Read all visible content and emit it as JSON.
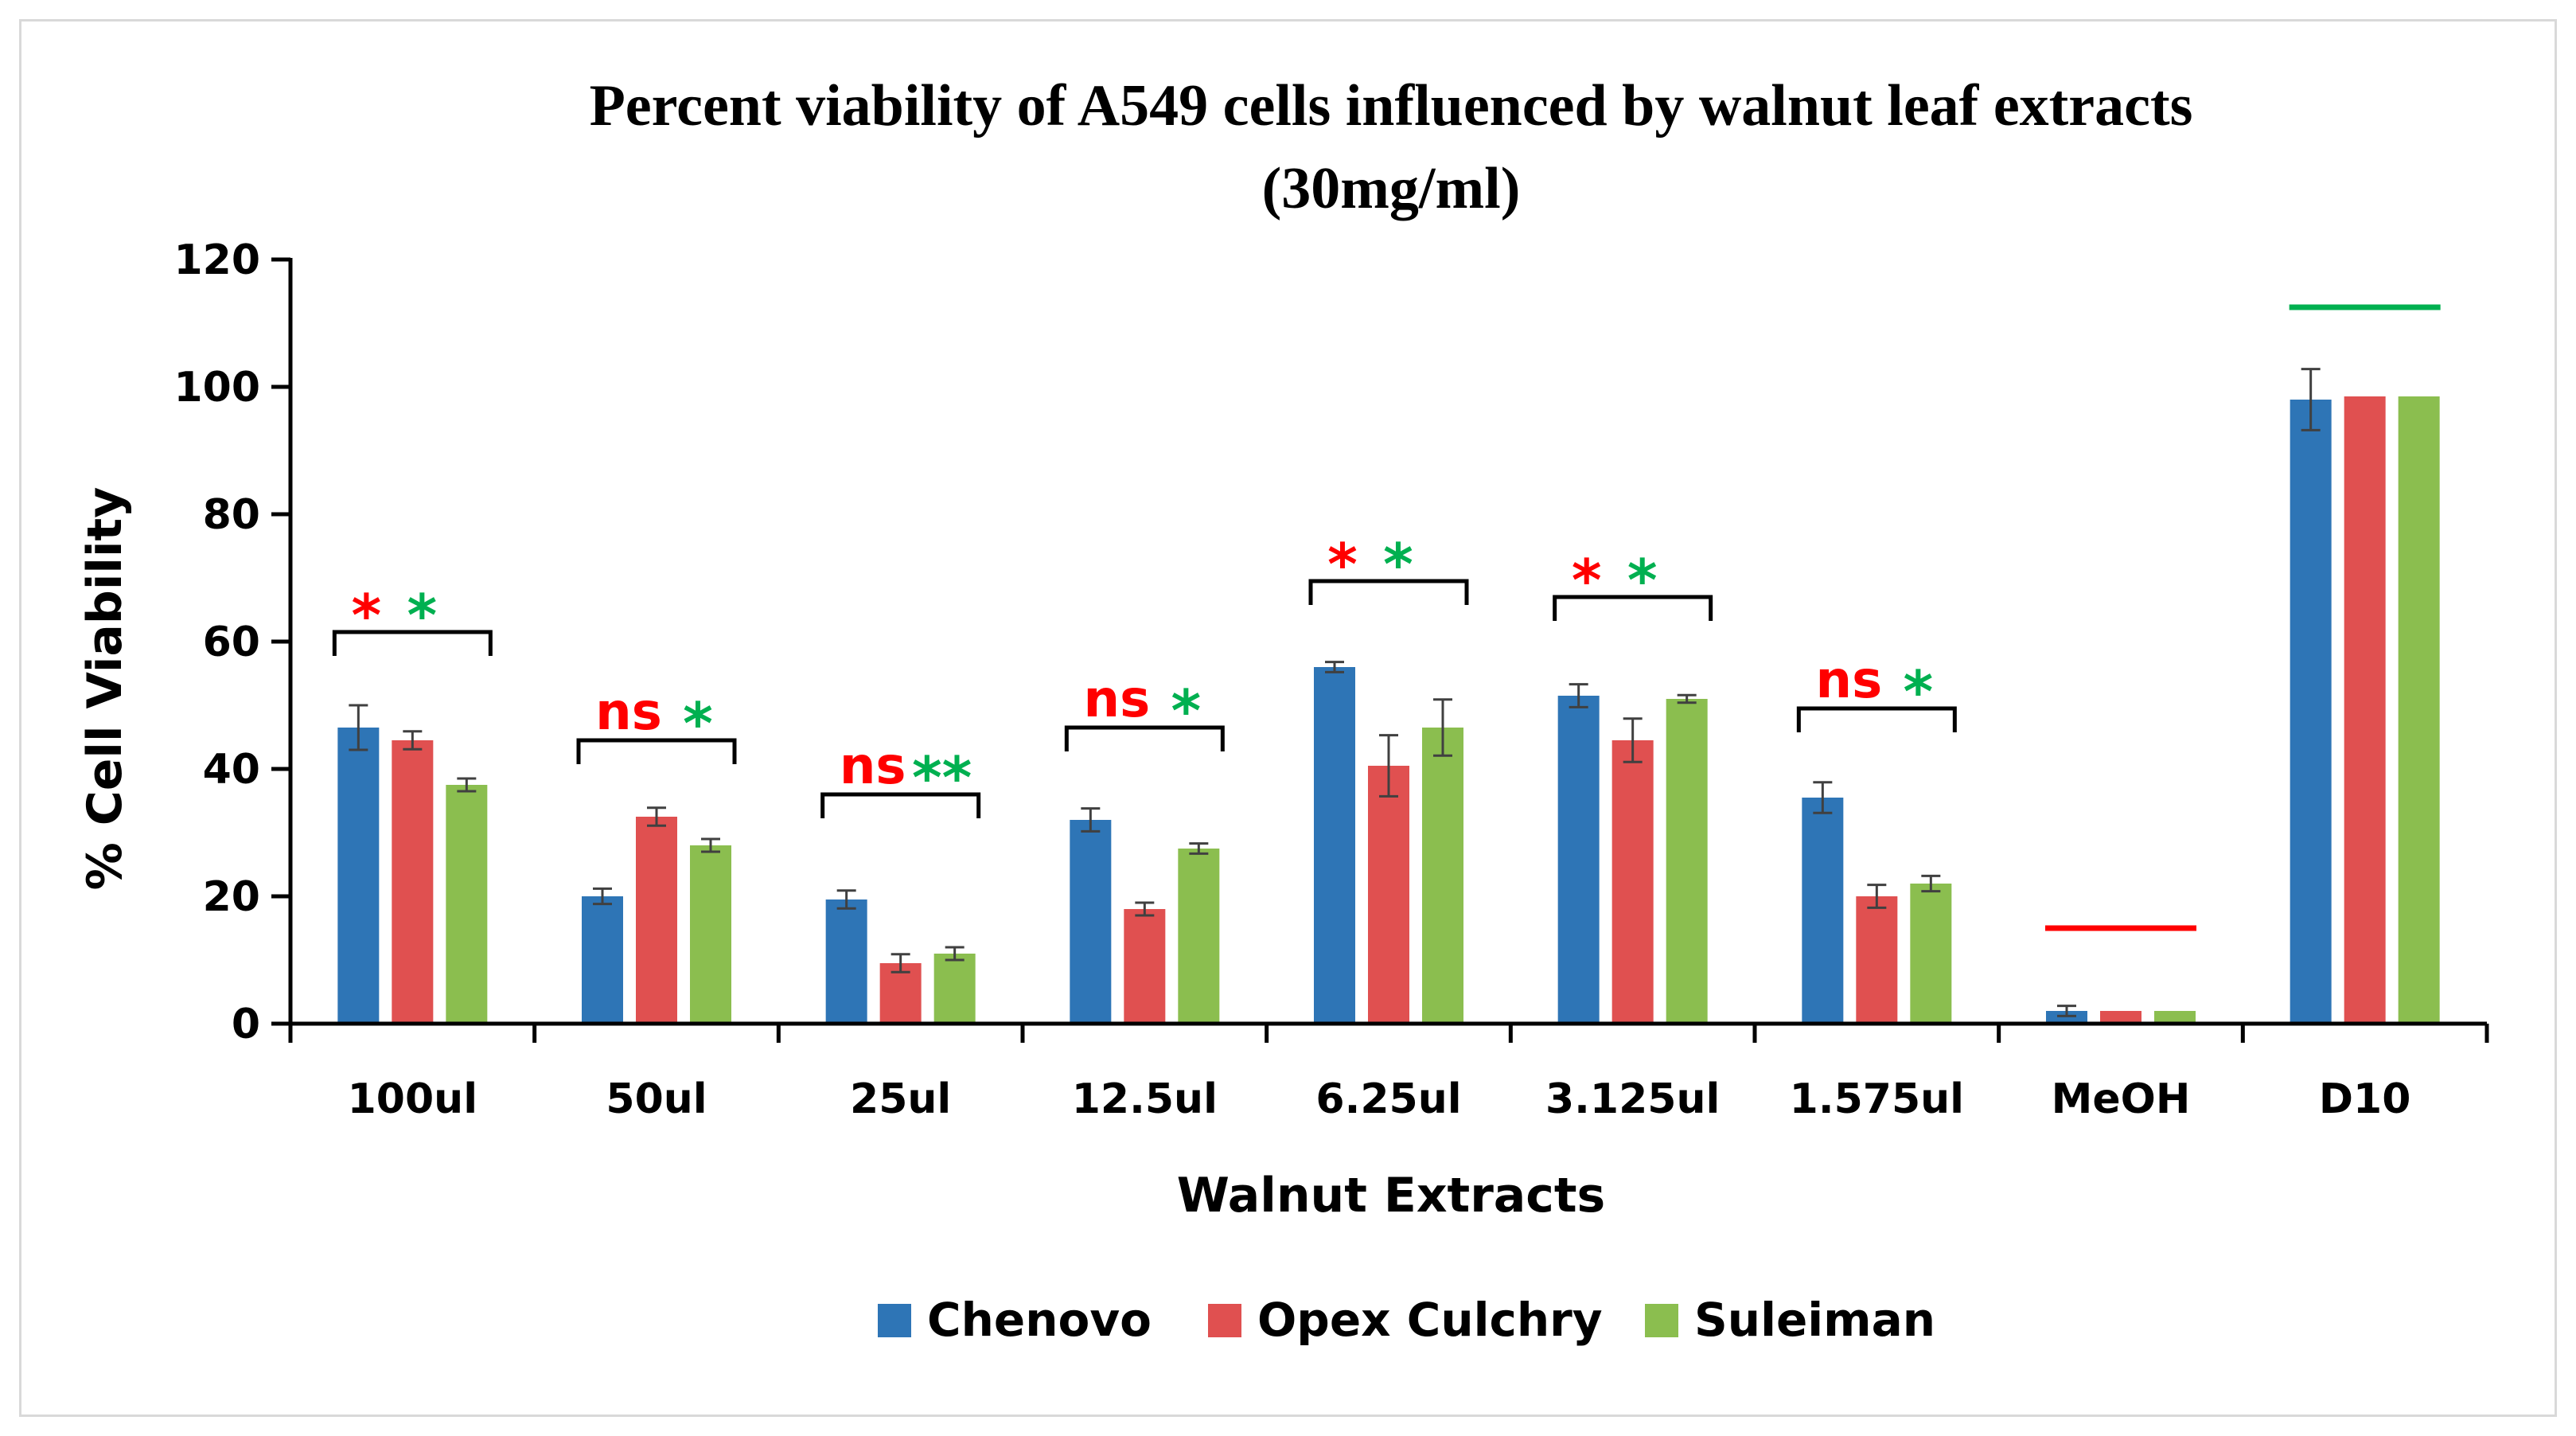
{
  "chart_data": {
    "type": "bar",
    "title_line1": "Percent viability of A549 cells influenced by walnut leaf extracts",
    "title_line2": "(30mg/ml)",
    "xlabel": "Walnut Extracts",
    "ylabel": "% Cell Viability",
    "ylim": [
      0,
      120
    ],
    "yticks": [
      "0",
      "20",
      "40",
      "60",
      "80",
      "100",
      "120"
    ],
    "categories": [
      "100ul",
      "50ul",
      "25ul",
      "12.5ul",
      "6.25ul",
      "3.125ul",
      "1.575ul",
      "MeOH",
      "D10"
    ],
    "series": [
      {
        "name": "Chenovo",
        "color": "#2E75B6",
        "values": [
          46.5,
          20,
          19.5,
          32,
          56,
          51.5,
          35.5,
          2,
          98
        ],
        "errors": [
          3.5,
          1.2,
          1.4,
          1.8,
          0.8,
          1.8,
          2.4,
          0.8,
          4.8
        ]
      },
      {
        "name": "Opex Culchry",
        "color": "#E05050",
        "values": [
          44.5,
          32.5,
          9.5,
          18,
          40.5,
          44.5,
          20,
          2,
          98.5
        ],
        "errors": [
          1.4,
          1.4,
          1.4,
          1.0,
          4.8,
          3.4,
          1.8,
          0,
          0
        ]
      },
      {
        "name": "Suleiman",
        "color": "#8BBE4F",
        "values": [
          37.5,
          28,
          11,
          27.5,
          46.5,
          51,
          22,
          2,
          98.5
        ],
        "errors": [
          1.0,
          1.0,
          1.0,
          0.8,
          4.4,
          0.6,
          1.2,
          0,
          0
        ]
      }
    ],
    "significance": [
      {
        "category": "100ul",
        "bracket_y": 61.5,
        "red": "*",
        "green": "*"
      },
      {
        "category": "50ul",
        "bracket_y": 44.5,
        "red": "ns",
        "green": "*"
      },
      {
        "category": "25ul",
        "bracket_y": 36,
        "red": "ns",
        "green": "**"
      },
      {
        "category": "12.5ul",
        "bracket_y": 46.5,
        "red": "ns",
        "green": "*"
      },
      {
        "category": "6.25ul",
        "bracket_y": 69.5,
        "red": "*",
        "green": "*"
      },
      {
        "category": "3.125ul",
        "bracket_y": 67,
        "red": "*",
        "green": "*"
      },
      {
        "category": "1.575ul",
        "bracket_y": 49.5,
        "red": "ns",
        "green": "*"
      }
    ],
    "reference_lines": [
      {
        "category": "MeOH",
        "y": 15,
        "color": "#FF0000"
      },
      {
        "category": "D10",
        "y": 112.5,
        "color": "#00B050"
      }
    ],
    "sig_colors": {
      "red": "#FF0000",
      "green": "#00B050"
    },
    "legend_position": "bottom",
    "grid": false
  }
}
